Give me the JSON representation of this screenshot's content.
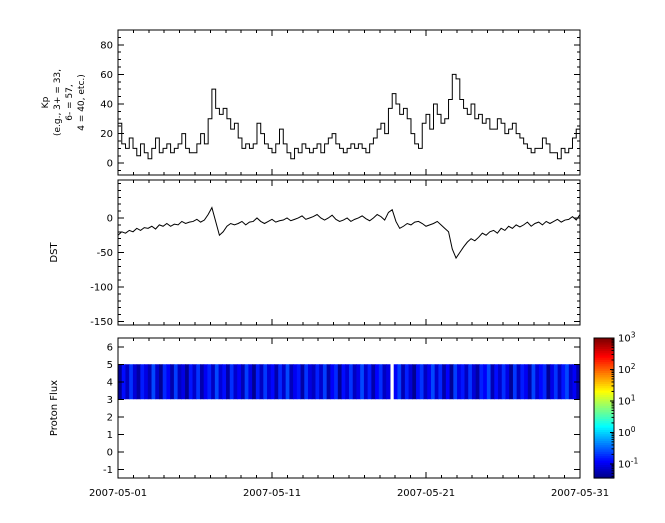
{
  "figure": {
    "background": "#ffffff"
  },
  "x_axis": {
    "tick_labels": [
      "2007-05-01",
      "2007-05-11",
      "2007-05-21",
      "2007-05-31"
    ],
    "tick_days": [
      0,
      10,
      20,
      30
    ],
    "day_range": [
      0,
      30
    ],
    "minor_step": 1,
    "major_step": 10
  },
  "chart_data": [
    {
      "name": "kp",
      "type": "line",
      "step": true,
      "ylabel_lines": [
        "Kp",
        "(e.g., 3+ = 33,",
        "6- = 57,",
        "4 = 40, etc.)"
      ],
      "ylim": [
        -8,
        90
      ],
      "yticks": [
        0,
        20,
        40,
        60,
        80
      ],
      "yminor_step": 5,
      "line_color": "#000000",
      "values": [
        27,
        13,
        10,
        17,
        10,
        5,
        13,
        7,
        3,
        10,
        17,
        7,
        10,
        13,
        7,
        10,
        13,
        20,
        10,
        7,
        7,
        13,
        20,
        13,
        30,
        50,
        37,
        33,
        37,
        30,
        23,
        27,
        17,
        10,
        13,
        10,
        13,
        27,
        20,
        13,
        10,
        7,
        13,
        23,
        13,
        7,
        3,
        10,
        7,
        13,
        10,
        7,
        10,
        13,
        7,
        13,
        17,
        20,
        13,
        10,
        7,
        10,
        13,
        10,
        13,
        10,
        7,
        13,
        17,
        23,
        27,
        20,
        37,
        47,
        40,
        33,
        37,
        30,
        20,
        13,
        10,
        27,
        33,
        23,
        40,
        33,
        27,
        30,
        43,
        60,
        57,
        43,
        37,
        33,
        40,
        30,
        33,
        27,
        30,
        23,
        23,
        30,
        27,
        20,
        23,
        27,
        20,
        17,
        13,
        10,
        7,
        10,
        10,
        17,
        13,
        7,
        7,
        3,
        10,
        7,
        10,
        17,
        23,
        27
      ]
    },
    {
      "name": "dst",
      "type": "line",
      "step": false,
      "ylabel": "DST",
      "ylim": [
        -155,
        55
      ],
      "yticks": [
        0,
        -50,
        -100,
        -150
      ],
      "yminor_step": 10,
      "line_color": "#000000",
      "values": [
        -25,
        -20,
        -22,
        -18,
        -20,
        -15,
        -18,
        -14,
        -15,
        -12,
        -16,
        -10,
        -12,
        -8,
        -12,
        -9,
        -10,
        -5,
        -8,
        -6,
        -5,
        -2,
        -6,
        -3,
        5,
        15,
        -5,
        -25,
        -20,
        -12,
        -8,
        -10,
        -8,
        -5,
        -10,
        -6,
        -5,
        0,
        -5,
        -8,
        -5,
        -2,
        -6,
        -4,
        -3,
        0,
        -4,
        -2,
        0,
        3,
        -2,
        0,
        2,
        5,
        0,
        -3,
        0,
        4,
        -2,
        -5,
        -3,
        0,
        -5,
        -2,
        0,
        3,
        -1,
        -4,
        0,
        5,
        2,
        -3,
        8,
        12,
        -5,
        -15,
        -12,
        -8,
        -10,
        -6,
        -5,
        -8,
        -12,
        -10,
        -8,
        -5,
        -10,
        -15,
        -20,
        -45,
        -58,
        -50,
        -42,
        -35,
        -30,
        -33,
        -28,
        -22,
        -25,
        -20,
        -18,
        -22,
        -15,
        -18,
        -12,
        -15,
        -10,
        -13,
        -10,
        -6,
        -12,
        -8,
        -6,
        -10,
        -5,
        -8,
        -5,
        -2,
        -6,
        -3,
        -2,
        2,
        -3,
        5
      ]
    },
    {
      "name": "proton-flux",
      "type": "heatmap",
      "ylabel": "Proton Flux",
      "ylim": [
        -1.5,
        6.5
      ],
      "yticks": [
        6,
        5,
        4,
        3,
        2,
        1,
        0,
        -1
      ],
      "band_y": [
        3,
        5
      ],
      "colormap": "jet",
      "colorbar": {
        "scale": "log",
        "min": 0.1,
        "max": 1000,
        "tick_exponents": [
          "3",
          "2",
          "1",
          "0",
          "-1"
        ],
        "log_range": [
          -1.45,
          3
        ]
      },
      "values": [
        0.12,
        0.35,
        0.18,
        0.5,
        0.22,
        0.14,
        0.4,
        0.25,
        0.16,
        0.6,
        0.2,
        0.12,
        0.45,
        0.3,
        0.15,
        0.55,
        0.18,
        0.25,
        0.12,
        0.38,
        0.2,
        0.5,
        0.15,
        0.28,
        0.42,
        0.18,
        0.6,
        0.22,
        0.35,
        0.14,
        0.48,
        0.2,
        0.3,
        0.16,
        0.55,
        0.25,
        0.12,
        0.4,
        0.18,
        0.52,
        0.22,
        0.33,
        0.15,
        0.45,
        0.2,
        0.6,
        0.17,
        0.28,
        0.38,
        0.14,
        0.5,
        0.24,
        0.18,
        0.42,
        0.2,
        0.55,
        0.15,
        0.3,
        0.45,
        0.12,
        0.35,
        0.22,
        0.5,
        0.18,
        0.26,
        0.6,
        0.2,
        0.4,
        0.15,
        0.32,
        0.48,
        0.18,
        0.25,
        null,
        0.3,
        0.55,
        0.16,
        0.42,
        0.22,
        0.12,
        0.35,
        0.5,
        0.18,
        0.28,
        0.6,
        0.2,
        0.44,
        0.15,
        0.32,
        0.12,
        0.55,
        0.25,
        0.38,
        0.18,
        0.5,
        0.22,
        0.14,
        0.42,
        0.3,
        0.6,
        0.16,
        0.35,
        0.2,
        0.48,
        0.25,
        0.12,
        0.52,
        0.18,
        0.4,
        0.28,
        0.15,
        0.58,
        0.22,
        0.33,
        0.45,
        0.12,
        0.26,
        0.5,
        0.18,
        0.38,
        0.6,
        0.2,
        0.3,
        0.14
      ]
    }
  ]
}
